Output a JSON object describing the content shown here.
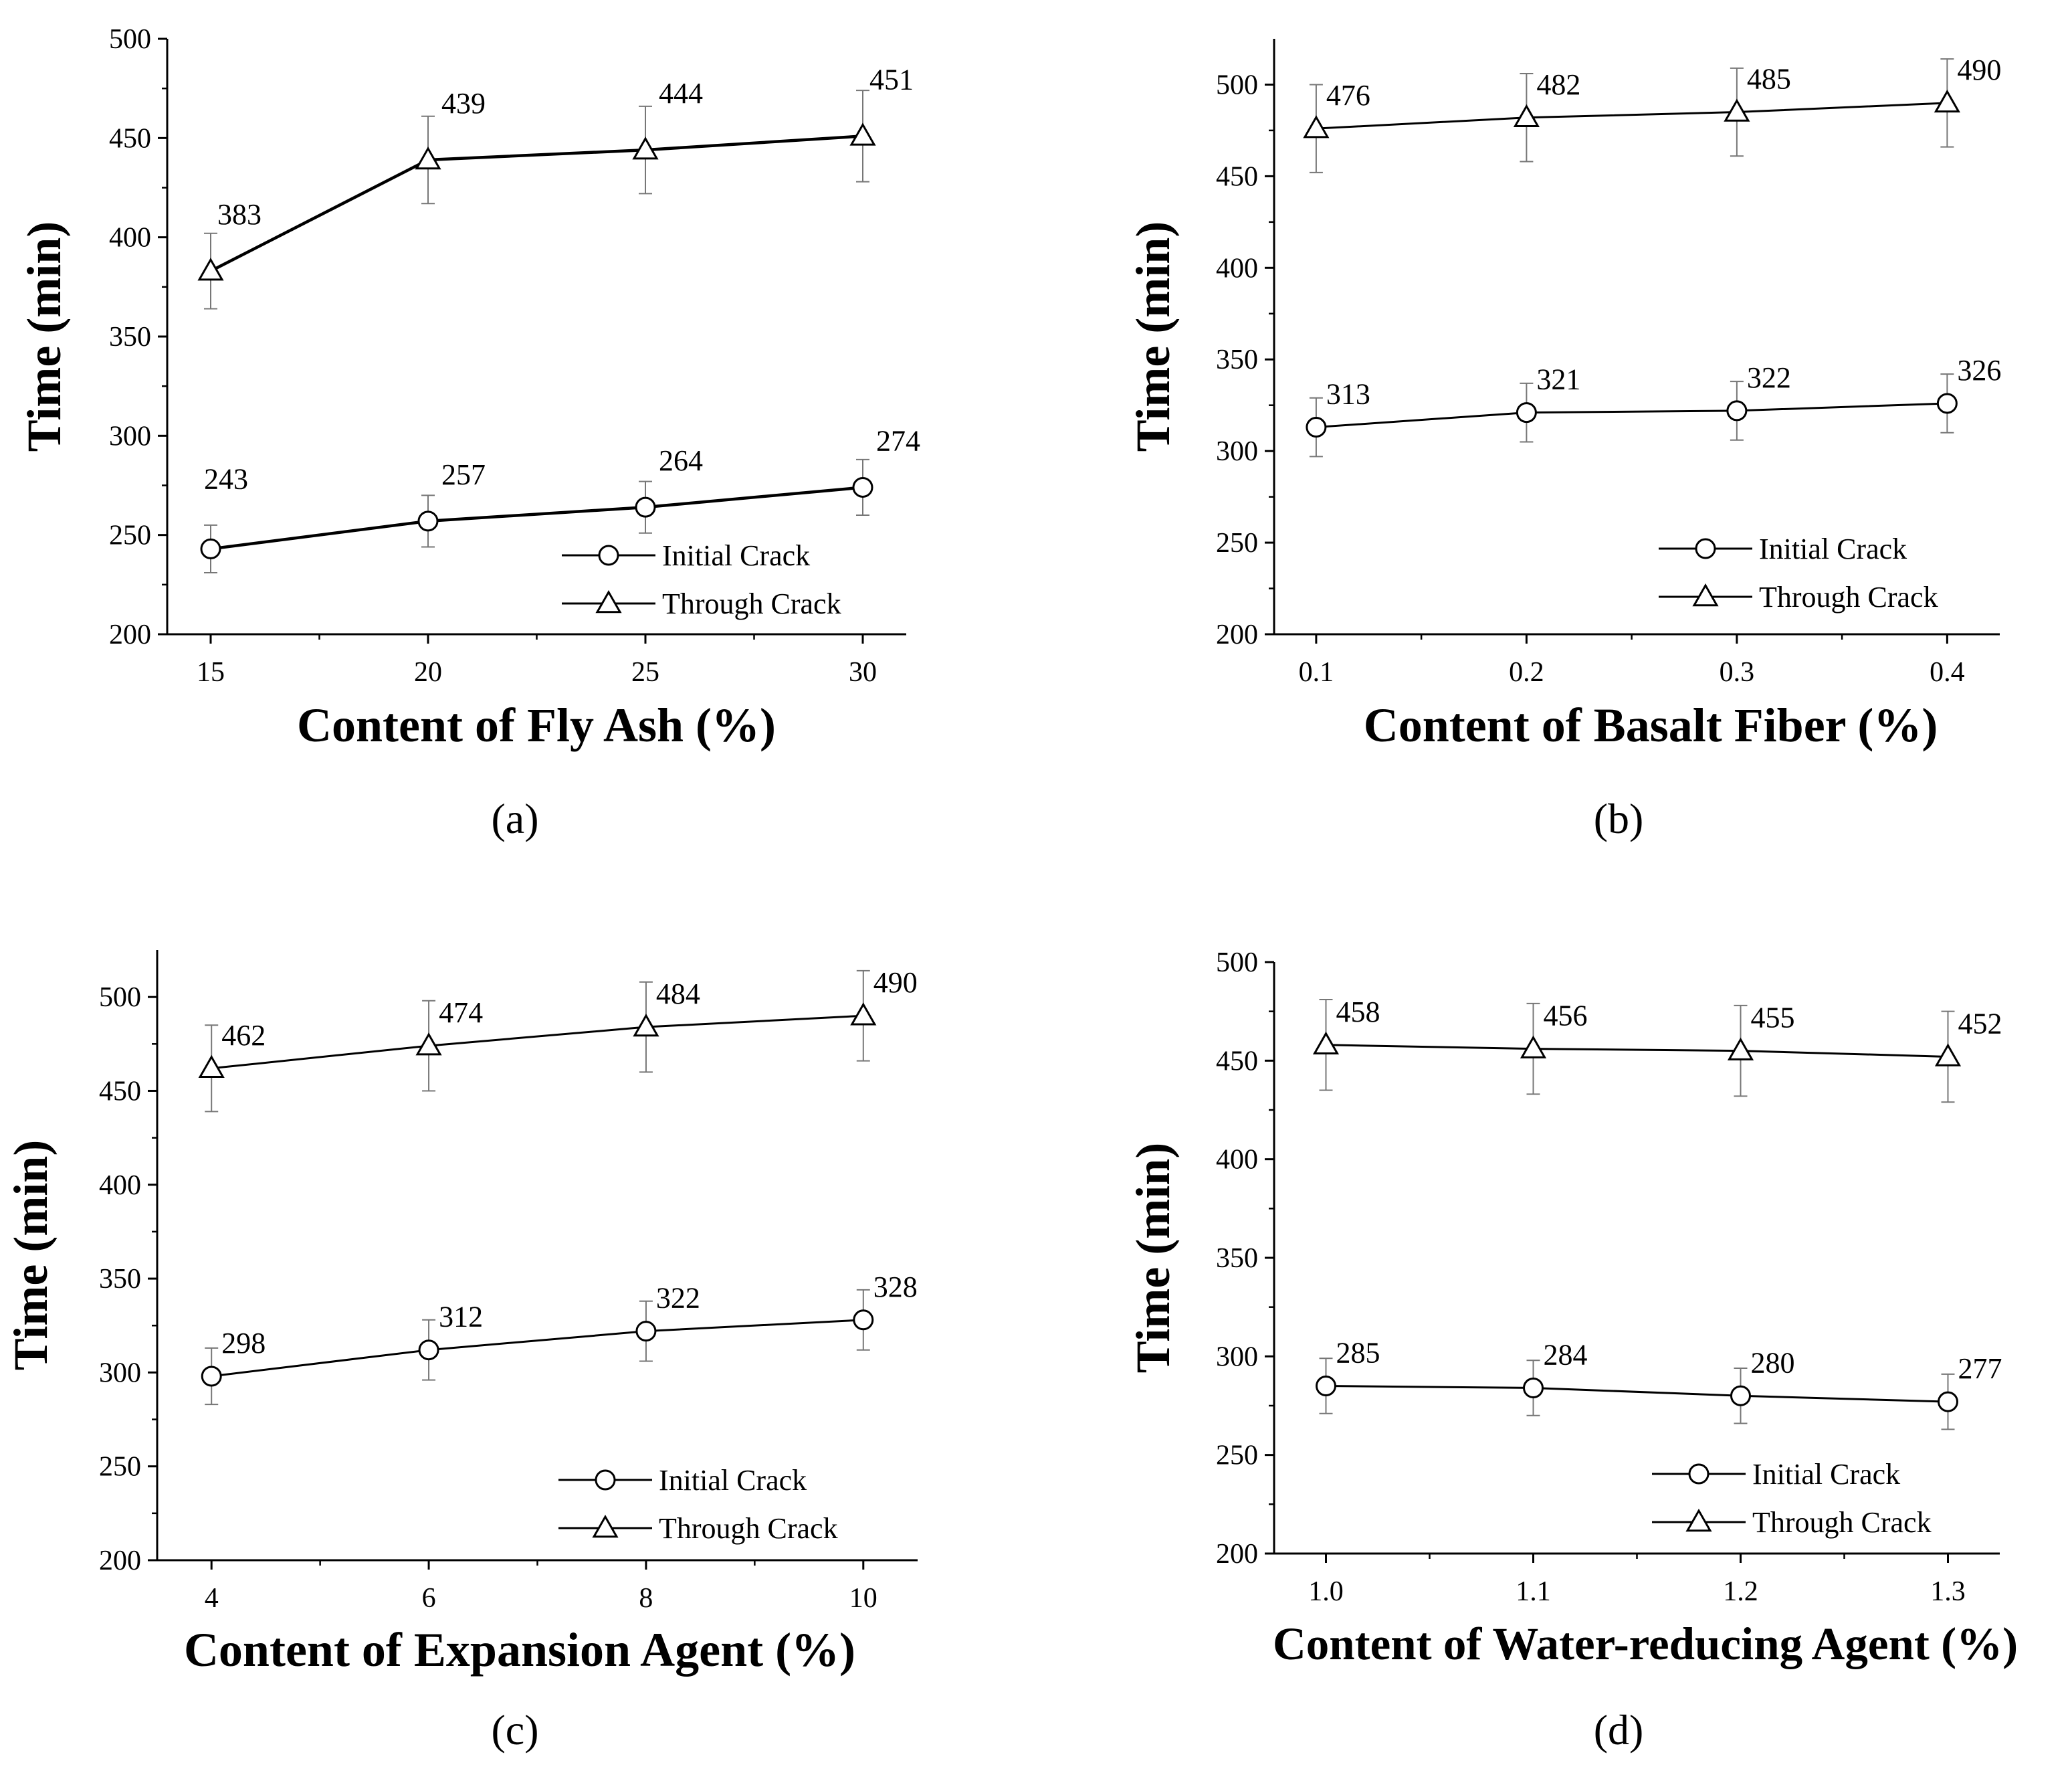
{
  "chart_data": [
    {
      "type": "line",
      "panel_label": "(a)",
      "xlabel": "Content of Fly Ash (%)",
      "ylabel": "Time (min)",
      "x": [
        15,
        20,
        25,
        30
      ],
      "x_tick_labels": [
        "15",
        "20",
        "25",
        "30"
      ],
      "xlim": [
        14,
        31
      ],
      "ylim": [
        200,
        500
      ],
      "y_ticks": [
        200,
        250,
        300,
        350,
        400,
        450,
        500
      ],
      "series": [
        {
          "name": "Initial Crack",
          "marker": "circle",
          "values": [
            243,
            257,
            264,
            274
          ],
          "error": [
            12,
            13,
            13,
            14
          ],
          "labels": [
            "243",
            "257",
            "264",
            "274"
          ]
        },
        {
          "name": "Through Crack",
          "marker": "triangle",
          "values": [
            383,
            439,
            444,
            451
          ],
          "error": [
            19,
            22,
            22,
            23
          ],
          "labels": [
            "383",
            "439",
            "444",
            "451"
          ]
        }
      ],
      "legend": "bottom-right"
    },
    {
      "type": "line",
      "panel_label": "(b)",
      "xlabel": "Content of Basalt Fiber (%)",
      "ylabel": "Time (min)",
      "x": [
        0.1,
        0.2,
        0.3,
        0.4
      ],
      "x_tick_labels": [
        "0.1",
        "0.2",
        "0.3",
        "0.4"
      ],
      "xlim": [
        0.08,
        0.425
      ],
      "ylim": [
        200,
        525
      ],
      "y_ticks": [
        200,
        250,
        300,
        350,
        400,
        450,
        500
      ],
      "series": [
        {
          "name": "Initial Crack",
          "marker": "circle",
          "values": [
            313,
            321,
            322,
            326
          ],
          "error": [
            16,
            16,
            16,
            16
          ],
          "labels": [
            "313",
            "321",
            "322",
            "326"
          ]
        },
        {
          "name": "Through Crack",
          "marker": "triangle",
          "values": [
            476,
            482,
            485,
            490
          ],
          "error": [
            24,
            24,
            24,
            24
          ],
          "labels": [
            "476",
            "482",
            "485",
            "490"
          ]
        }
      ],
      "legend": "bottom-right"
    },
    {
      "type": "line",
      "panel_label": "(c)",
      "xlabel": "Content of Expansion Agent (%)",
      "ylabel": "Time (min)",
      "x": [
        4,
        6,
        8,
        10
      ],
      "x_tick_labels": [
        "4",
        "6",
        "8",
        "10"
      ],
      "xlim": [
        3.5,
        10.5
      ],
      "ylim": [
        200,
        525
      ],
      "y_ticks": [
        200,
        250,
        300,
        350,
        400,
        450,
        500
      ],
      "series": [
        {
          "name": "Initial Crack",
          "marker": "circle",
          "values": [
            298,
            312,
            322,
            328
          ],
          "error": [
            15,
            16,
            16,
            16
          ],
          "labels": [
            "298",
            "312",
            "322",
            "328"
          ]
        },
        {
          "name": "Through Crack",
          "marker": "triangle",
          "values": [
            462,
            474,
            484,
            490
          ],
          "error": [
            23,
            24,
            24,
            24
          ],
          "labels": [
            "462",
            "474",
            "484",
            "490"
          ]
        }
      ],
      "legend": "bottom-right"
    },
    {
      "type": "line",
      "panel_label": "(d)",
      "xlabel": "Content of Water-reducing Agent (%)",
      "ylabel": "Time (min)",
      "x": [
        1.0,
        1.1,
        1.2,
        1.3
      ],
      "x_tick_labels": [
        "1.0",
        "1.1",
        "1.2",
        "1.3"
      ],
      "xlim": [
        0.975,
        1.325
      ],
      "ylim": [
        200,
        500
      ],
      "y_ticks": [
        200,
        250,
        300,
        350,
        400,
        450,
        500
      ],
      "series": [
        {
          "name": "Initial Crack",
          "marker": "circle",
          "values": [
            285,
            284,
            280,
            277
          ],
          "error": [
            14,
            14,
            14,
            14
          ],
          "labels": [
            "285",
            "284",
            "280",
            "277"
          ]
        },
        {
          "name": "Through Crack",
          "marker": "triangle",
          "values": [
            458,
            456,
            455,
            452
          ],
          "error": [
            23,
            23,
            23,
            23
          ],
          "labels": [
            "458",
            "456",
            "455",
            "452"
          ]
        }
      ],
      "legend": "bottom-right"
    }
  ]
}
